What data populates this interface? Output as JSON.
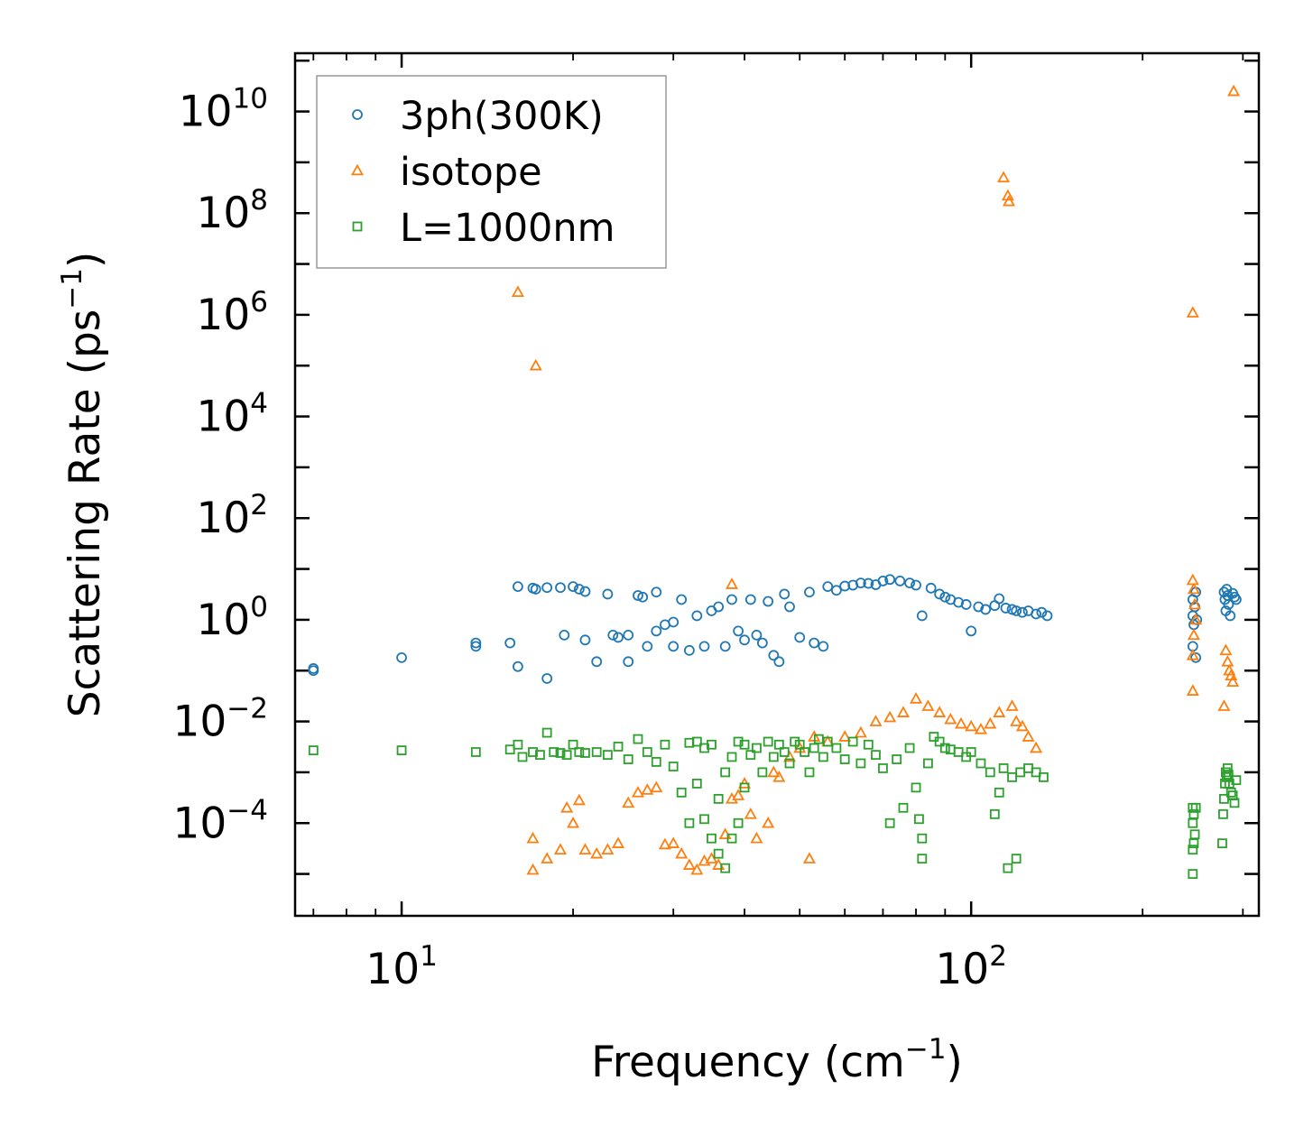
{
  "chart_data": {
    "type": "scatter",
    "title": "",
    "xlabel": "Frequency (cm",
    "xlabel_sup": "−1",
    "xlabel_end": ")",
    "ylabel": "Scattering Rate (ps",
    "ylabel_sup": "−1",
    "ylabel_end": ")",
    "xscale": "log",
    "yscale": "log",
    "xlim": [
      6.5,
      320
    ],
    "ylim": [
      1.5e-06,
      140000000000.0
    ],
    "x_ticks": [
      {
        "value": 10,
        "base": "10",
        "exp": "1"
      },
      {
        "value": 100,
        "base": "10",
        "exp": "2"
      }
    ],
    "y_ticks": [
      {
        "value": 0.0001,
        "base": "10",
        "exp": "−4"
      },
      {
        "value": 0.01,
        "base": "10",
        "exp": "−2"
      },
      {
        "value": 1,
        "base": "10",
        "exp": "0"
      },
      {
        "value": 100.0,
        "base": "10",
        "exp": "2"
      },
      {
        "value": 10000.0,
        "base": "10",
        "exp": "4"
      },
      {
        "value": 1000000.0,
        "base": "10",
        "exp": "6"
      },
      {
        "value": 100000000.0,
        "base": "10",
        "exp": "8"
      },
      {
        "value": 10000000000.0,
        "base": "10",
        "exp": "10"
      }
    ],
    "legend_position": "top-left",
    "series": [
      {
        "name": "3ph(300K)",
        "marker": "circle",
        "color": "#1f77b4",
        "points": [
          [
            7,
            0.1
          ],
          [
            7,
            0.11
          ],
          [
            10,
            0.18
          ],
          [
            13.5,
            0.3
          ],
          [
            13.5,
            0.35
          ],
          [
            15.5,
            0.35
          ],
          [
            16,
            4.5
          ],
          [
            16,
            0.12
          ],
          [
            17,
            4.2
          ],
          [
            17.2,
            4
          ],
          [
            18,
            4.3
          ],
          [
            18,
            0.07
          ],
          [
            19,
            4.3
          ],
          [
            19.3,
            0.5
          ],
          [
            20,
            4.5
          ],
          [
            20.5,
            4
          ],
          [
            21,
            0.4
          ],
          [
            21,
            3.6
          ],
          [
            22,
            0.15
          ],
          [
            23,
            3.2
          ],
          [
            23.5,
            0.5
          ],
          [
            24,
            0.45
          ],
          [
            25,
            0.5
          ],
          [
            25,
            0.15
          ],
          [
            26,
            3
          ],
          [
            26.5,
            2.8
          ],
          [
            27,
            0.3
          ],
          [
            28,
            3.5
          ],
          [
            28,
            0.6
          ],
          [
            29,
            0.8
          ],
          [
            30,
            0.9
          ],
          [
            30,
            0.3
          ],
          [
            31,
            2.5
          ],
          [
            32,
            0.25
          ],
          [
            33,
            1.2
          ],
          [
            34,
            0.3
          ],
          [
            35,
            1.5
          ],
          [
            36,
            1.8
          ],
          [
            37,
            0.3
          ],
          [
            38,
            2.5
          ],
          [
            39,
            0.6
          ],
          [
            40,
            0.4
          ],
          [
            41,
            2.5
          ],
          [
            42,
            0.5
          ],
          [
            43,
            0.35
          ],
          [
            44,
            2.3
          ],
          [
            45,
            0.2
          ],
          [
            46,
            0.15
          ],
          [
            47,
            3.2
          ],
          [
            48,
            1.8
          ],
          [
            50,
            0.45
          ],
          [
            52,
            3.5
          ],
          [
            53,
            0.35
          ],
          [
            55,
            0.3
          ],
          [
            56,
            4.5
          ],
          [
            58,
            3.8
          ],
          [
            60,
            4.6
          ],
          [
            62,
            4.8
          ],
          [
            64,
            5.3
          ],
          [
            66,
            5.2
          ],
          [
            68,
            4.9
          ],
          [
            70,
            5.8
          ],
          [
            72,
            6.2
          ],
          [
            75,
            5.8
          ],
          [
            78,
            5.3
          ],
          [
            80,
            4.8
          ],
          [
            82,
            1.2
          ],
          [
            85,
            4.2
          ],
          [
            88,
            3.2
          ],
          [
            90,
            2.8
          ],
          [
            92,
            2.5
          ],
          [
            95,
            2.2
          ],
          [
            98,
            2
          ],
          [
            100,
            0.6
          ],
          [
            103,
            1.8
          ],
          [
            106,
            1.6
          ],
          [
            110,
            1.9
          ],
          [
            112,
            2.6
          ],
          [
            115,
            1.7
          ],
          [
            118,
            1.6
          ],
          [
            120,
            1.5
          ],
          [
            123,
            1.4
          ],
          [
            126,
            1.5
          ],
          [
            130,
            1.3
          ],
          [
            133,
            1.4
          ],
          [
            136,
            1.2
          ],
          [
            245,
            1.2
          ],
          [
            245,
            2.5
          ],
          [
            245,
            0.3
          ],
          [
            246,
            0.8
          ],
          [
            247,
            1.8
          ],
          [
            248,
            3.5
          ],
          [
            248,
            0.18
          ],
          [
            249,
            1
          ],
          [
            278,
            3.5
          ],
          [
            279,
            2.5
          ],
          [
            280,
            1.5
          ],
          [
            281,
            4
          ],
          [
            282,
            3
          ],
          [
            283,
            2
          ],
          [
            285,
            1.2
          ],
          [
            288,
            3.3
          ],
          [
            290,
            2.8
          ],
          [
            292,
            2.5
          ]
        ]
      },
      {
        "name": "isotope",
        "marker": "triangle",
        "color": "#ff7f0e",
        "points": [
          [
            16,
            2800000.0
          ],
          [
            17.2,
            100000.0
          ],
          [
            17,
            5e-05
          ],
          [
            17,
            1.2e-05
          ],
          [
            18,
            2e-05
          ],
          [
            19,
            3e-05
          ],
          [
            19.5,
            0.0002
          ],
          [
            20,
            0.0001
          ],
          [
            20.5,
            0.00028
          ],
          [
            21,
            3e-05
          ],
          [
            22,
            2.5e-05
          ],
          [
            23,
            3e-05
          ],
          [
            24,
            4e-05
          ],
          [
            25,
            0.00025
          ],
          [
            26,
            0.0004
          ],
          [
            27,
            0.00045
          ],
          [
            28,
            0.0005
          ],
          [
            29,
            3.8e-05
          ],
          [
            30,
            4e-05
          ],
          [
            31,
            2.5e-05
          ],
          [
            32,
            1.5e-05
          ],
          [
            33,
            1.2e-05
          ],
          [
            34,
            1.8e-05
          ],
          [
            35,
            2e-05
          ],
          [
            36,
            1.5e-05
          ],
          [
            37,
            6e-05
          ],
          [
            38,
            0.0003
          ],
          [
            39,
            0.00035
          ],
          [
            40,
            0.0006
          ],
          [
            41,
            0.00015
          ],
          [
            42,
            5e-05
          ],
          [
            44,
            0.0001
          ],
          [
            45,
            0.001
          ],
          [
            46,
            0.0008
          ],
          [
            48,
            0.002
          ],
          [
            50,
            0.003
          ],
          [
            52,
            2e-05
          ],
          [
            53,
            0.005
          ],
          [
            56,
            0.004
          ],
          [
            60,
            0.005
          ],
          [
            64,
            0.006
          ],
          [
            68,
            0.01
          ],
          [
            72,
            0.012
          ],
          [
            76,
            0.015
          ],
          [
            80,
            0.028
          ],
          [
            84,
            0.02
          ],
          [
            88,
            0.015
          ],
          [
            92,
            0.011
          ],
          [
            96,
            0.009
          ],
          [
            100,
            0.008
          ],
          [
            104,
            0.007
          ],
          [
            108,
            0.009
          ],
          [
            112,
            0.015
          ],
          [
            114,
            500000000.0
          ],
          [
            116,
            220000000.0
          ],
          [
            116.5,
            170000000.0
          ],
          [
            118,
            0.02
          ],
          [
            120,
            0.01
          ],
          [
            123,
            0.008
          ],
          [
            126,
            0.005
          ],
          [
            130,
            0.003
          ],
          [
            38,
            5
          ],
          [
            245,
            1100000.0
          ],
          [
            245,
            0.04
          ],
          [
            245,
            6
          ],
          [
            245,
            0.2
          ],
          [
            246,
            4
          ],
          [
            246,
            0.5
          ],
          [
            247,
            2
          ],
          [
            248,
            1
          ],
          [
            278,
            0.02
          ],
          [
            280,
            0.25
          ],
          [
            282,
            0.15
          ],
          [
            284,
            0.1
          ],
          [
            286,
            0.08
          ],
          [
            288,
            0.06
          ],
          [
            289,
            25000000000.0
          ]
        ]
      },
      {
        "name": "L=1000nm",
        "marker": "square",
        "color": "#2ca02c",
        "points": [
          [
            7,
            0.0027
          ],
          [
            10,
            0.0027
          ],
          [
            13.5,
            0.0025
          ],
          [
            15.5,
            0.0028
          ],
          [
            16,
            0.0035
          ],
          [
            16.3,
            0.002
          ],
          [
            17,
            0.0025
          ],
          [
            17.5,
            0.0022
          ],
          [
            18,
            0.006
          ],
          [
            18.5,
            0.0025
          ],
          [
            19,
            0.0024
          ],
          [
            19.5,
            0.0022
          ],
          [
            20,
            0.0035
          ],
          [
            20.5,
            0.0025
          ],
          [
            21,
            0.0024
          ],
          [
            22,
            0.0025
          ],
          [
            23,
            0.0022
          ],
          [
            24,
            0.0032
          ],
          [
            25,
            0.0018
          ],
          [
            26,
            0.0045
          ],
          [
            27,
            0.0025
          ],
          [
            28,
            0.0016
          ],
          [
            29,
            0.0035
          ],
          [
            30,
            0.0013
          ],
          [
            31,
            0.0004
          ],
          [
            32,
            0.0038
          ],
          [
            32,
            0.0001
          ],
          [
            33,
            0.004
          ],
          [
            33,
            0.0006
          ],
          [
            34,
            0.003
          ],
          [
            34,
            0.00012
          ],
          [
            35,
            0.0035
          ],
          [
            35,
            5e-05
          ],
          [
            36,
            0.0003
          ],
          [
            36,
            2.5e-05
          ],
          [
            37,
            0.001
          ],
          [
            37,
            1.3e-05
          ],
          [
            38,
            0.002
          ],
          [
            38,
            5e-05
          ],
          [
            39,
            0.004
          ],
          [
            39,
            0.0001
          ],
          [
            40,
            0.0035
          ],
          [
            40,
            0.0005
          ],
          [
            41,
            0.0022
          ],
          [
            42,
            0.003
          ],
          [
            43,
            0.001
          ],
          [
            44,
            0.004
          ],
          [
            45,
            0.002
          ],
          [
            46,
            0.0035
          ],
          [
            47,
            0.0025
          ],
          [
            48,
            0.0015
          ],
          [
            49,
            0.004
          ],
          [
            50,
            0.0035
          ],
          [
            51,
            0.0025
          ],
          [
            52,
            0.001
          ],
          [
            53,
            0.003
          ],
          [
            54,
            0.0045
          ],
          [
            55,
            0.002
          ],
          [
            56,
            0.004
          ],
          [
            58,
            0.003
          ],
          [
            60,
            0.0018
          ],
          [
            62,
            0.004
          ],
          [
            64,
            0.0015
          ],
          [
            66,
            0.0035
          ],
          [
            68,
            0.0022
          ],
          [
            70,
            0.0012
          ],
          [
            72,
            0.0001
          ],
          [
            74,
            0.0018
          ],
          [
            76,
            0.0002
          ],
          [
            78,
            0.003
          ],
          [
            80,
            0.0005
          ],
          [
            81,
            0.00012
          ],
          [
            82,
            5e-05
          ],
          [
            82,
            2e-05
          ],
          [
            84,
            0.0015
          ],
          [
            86,
            0.005
          ],
          [
            88,
            0.004
          ],
          [
            90,
            0.003
          ],
          [
            92,
            0.0028
          ],
          [
            95,
            0.0025
          ],
          [
            98,
            0.002
          ],
          [
            100,
            0.0025
          ],
          [
            104,
            0.0015
          ],
          [
            108,
            0.001
          ],
          [
            110,
            0.00015
          ],
          [
            112,
            0.0004
          ],
          [
            114,
            0.0012
          ],
          [
            116,
            1.3e-05
          ],
          [
            118,
            0.0008
          ],
          [
            120,
            2e-05
          ],
          [
            122,
            0.001
          ],
          [
            126,
            0.0012
          ],
          [
            130,
            0.001
          ],
          [
            134,
            0.0008
          ],
          [
            245,
            0.0002
          ],
          [
            245,
            0.0001
          ],
          [
            245,
            3e-05
          ],
          [
            245,
            1e-05
          ],
          [
            246,
            0.00015
          ],
          [
            246,
            4e-05
          ],
          [
            247,
            6e-05
          ],
          [
            248,
            0.0002
          ],
          [
            276,
            4e-05
          ],
          [
            277,
            0.00015
          ],
          [
            278,
            0.0003
          ],
          [
            279,
            0.0006
          ],
          [
            280,
            0.001
          ],
          [
            281,
            0.0008
          ],
          [
            282,
            0.0012
          ],
          [
            283,
            0.0009
          ],
          [
            284,
            0.0006
          ],
          [
            286,
            0.0004
          ],
          [
            288,
            0.00035
          ],
          [
            290,
            0.00025
          ],
          [
            292,
            0.0007
          ]
        ]
      }
    ]
  }
}
